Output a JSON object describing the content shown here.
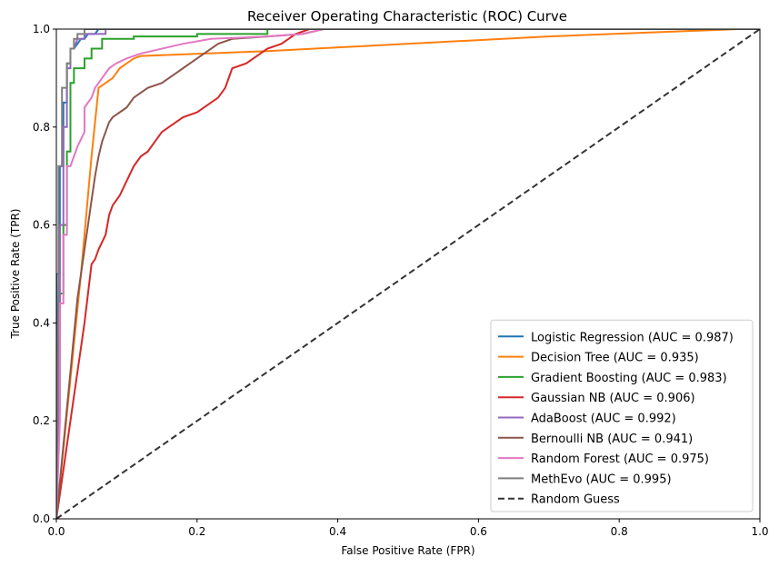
{
  "chart_data": {
    "type": "line",
    "title": "Receiver Operating Characteristic (ROC) Curve",
    "xlabel": "False Positive Rate (FPR)",
    "ylabel": "True Positive Rate (TPR)",
    "xlim": [
      0,
      1
    ],
    "ylim": [
      0,
      1
    ],
    "xticks": [
      "0.0",
      "0.2",
      "0.4",
      "0.6",
      "0.8",
      "1.0"
    ],
    "yticks": [
      "0.0",
      "0.2",
      "0.4",
      "0.6",
      "0.8",
      "1.0"
    ],
    "grid": false,
    "legend_position": "bottom-right",
    "series": [
      {
        "name": "Logistic Regression (AUC = 0.987)",
        "color": "#1f77b4",
        "style": "solid",
        "points": [
          [
            0,
            0
          ],
          [
            0,
            0.5
          ],
          [
            0.005,
            0.5
          ],
          [
            0.005,
            0.72
          ],
          [
            0.01,
            0.72
          ],
          [
            0.01,
            0.85
          ],
          [
            0.015,
            0.85
          ],
          [
            0.015,
            0.93
          ],
          [
            0.02,
            0.93
          ],
          [
            0.02,
            0.96
          ],
          [
            0.025,
            0.96
          ],
          [
            0.03,
            0.97
          ],
          [
            0.035,
            0.98
          ],
          [
            0.04,
            0.98
          ],
          [
            0.045,
            0.99
          ],
          [
            0.055,
            0.99
          ],
          [
            0.06,
            1.0
          ],
          [
            1,
            1
          ]
        ]
      },
      {
        "name": "Decision Tree (AUC = 0.935)",
        "color": "#ff7f0e",
        "style": "solid",
        "points": [
          [
            0,
            0
          ],
          [
            0.035,
            0.5
          ],
          [
            0.05,
            0.74
          ],
          [
            0.06,
            0.88
          ],
          [
            0.08,
            0.9
          ],
          [
            0.09,
            0.92
          ],
          [
            0.11,
            0.94
          ],
          [
            0.12,
            0.945
          ],
          [
            0.3,
            0.955
          ],
          [
            0.5,
            0.97
          ],
          [
            0.7,
            0.985
          ],
          [
            0.97,
            1.0
          ],
          [
            1,
            1
          ]
        ]
      },
      {
        "name": "Gradient Boosting (AUC = 0.983)",
        "color": "#2ca02c",
        "style": "solid",
        "points": [
          [
            0,
            0
          ],
          [
            0.005,
            0.23
          ],
          [
            0.005,
            0.46
          ],
          [
            0.01,
            0.46
          ],
          [
            0.01,
            0.6
          ],
          [
            0.015,
            0.6
          ],
          [
            0.015,
            0.75
          ],
          [
            0.02,
            0.75
          ],
          [
            0.02,
            0.89
          ],
          [
            0.025,
            0.89
          ],
          [
            0.025,
            0.92
          ],
          [
            0.04,
            0.92
          ],
          [
            0.04,
            0.94
          ],
          [
            0.05,
            0.94
          ],
          [
            0.05,
            0.96
          ],
          [
            0.065,
            0.96
          ],
          [
            0.065,
            0.98
          ],
          [
            0.11,
            0.98
          ],
          [
            0.11,
            0.985
          ],
          [
            0.2,
            0.985
          ],
          [
            0.2,
            0.99
          ],
          [
            0.3,
            0.99
          ],
          [
            0.3,
            1.0
          ],
          [
            1,
            1
          ]
        ]
      },
      {
        "name": "Gaussian NB (AUC = 0.906)",
        "color": "#d62728",
        "style": "solid",
        "points": [
          [
            0,
            0
          ],
          [
            0.04,
            0.4
          ],
          [
            0.05,
            0.52
          ],
          [
            0.055,
            0.53
          ],
          [
            0.06,
            0.55
          ],
          [
            0.07,
            0.58
          ],
          [
            0.075,
            0.62
          ],
          [
            0.08,
            0.64
          ],
          [
            0.09,
            0.66
          ],
          [
            0.1,
            0.69
          ],
          [
            0.11,
            0.72
          ],
          [
            0.12,
            0.74
          ],
          [
            0.13,
            0.75
          ],
          [
            0.14,
            0.77
          ],
          [
            0.15,
            0.79
          ],
          [
            0.16,
            0.8
          ],
          [
            0.17,
            0.81
          ],
          [
            0.18,
            0.82
          ],
          [
            0.2,
            0.83
          ],
          [
            0.21,
            0.84
          ],
          [
            0.22,
            0.85
          ],
          [
            0.23,
            0.86
          ],
          [
            0.24,
            0.88
          ],
          [
            0.245,
            0.9
          ],
          [
            0.25,
            0.92
          ],
          [
            0.27,
            0.93
          ],
          [
            0.28,
            0.94
          ],
          [
            0.29,
            0.95
          ],
          [
            0.3,
            0.96
          ],
          [
            0.32,
            0.97
          ],
          [
            0.33,
            0.98
          ],
          [
            0.34,
            0.99
          ],
          [
            0.36,
            1.0
          ],
          [
            1,
            1
          ]
        ]
      },
      {
        "name": "AdaBoost (AUC = 0.992)",
        "color": "#9467bd",
        "style": "solid",
        "points": [
          [
            0,
            0
          ],
          [
            0.005,
            0.4
          ],
          [
            0.005,
            0.6
          ],
          [
            0.01,
            0.6
          ],
          [
            0.01,
            0.8
          ],
          [
            0.015,
            0.8
          ],
          [
            0.015,
            0.92
          ],
          [
            0.02,
            0.92
          ],
          [
            0.02,
            0.96
          ],
          [
            0.025,
            0.96
          ],
          [
            0.03,
            0.98
          ],
          [
            0.04,
            0.98
          ],
          [
            0.04,
            0.99
          ],
          [
            0.07,
            0.99
          ],
          [
            0.07,
            1.0
          ],
          [
            1,
            1
          ]
        ]
      },
      {
        "name": "Bernoulli NB (AUC = 0.941)",
        "color": "#8c564b",
        "style": "solid",
        "points": [
          [
            0,
            0
          ],
          [
            0.02,
            0.3
          ],
          [
            0.03,
            0.45
          ],
          [
            0.04,
            0.55
          ],
          [
            0.045,
            0.6
          ],
          [
            0.05,
            0.65
          ],
          [
            0.055,
            0.7
          ],
          [
            0.06,
            0.74
          ],
          [
            0.065,
            0.77
          ],
          [
            0.07,
            0.79
          ],
          [
            0.075,
            0.81
          ],
          [
            0.08,
            0.82
          ],
          [
            0.09,
            0.83
          ],
          [
            0.1,
            0.84
          ],
          [
            0.11,
            0.86
          ],
          [
            0.12,
            0.87
          ],
          [
            0.13,
            0.88
          ],
          [
            0.15,
            0.89
          ],
          [
            0.16,
            0.9
          ],
          [
            0.17,
            0.91
          ],
          [
            0.18,
            0.92
          ],
          [
            0.19,
            0.93
          ],
          [
            0.2,
            0.94
          ],
          [
            0.21,
            0.95
          ],
          [
            0.22,
            0.96
          ],
          [
            0.23,
            0.97
          ],
          [
            0.24,
            0.975
          ],
          [
            0.25,
            0.98
          ],
          [
            0.3,
            0.985
          ],
          [
            0.35,
            0.99
          ],
          [
            0.38,
            1.0
          ],
          [
            1,
            1
          ]
        ]
      },
      {
        "name": "Random Forest (AUC = 0.975)",
        "color": "#e377c2",
        "style": "solid",
        "points": [
          [
            0,
            0
          ],
          [
            0.005,
            0.2
          ],
          [
            0.005,
            0.44
          ],
          [
            0.01,
            0.44
          ],
          [
            0.01,
            0.58
          ],
          [
            0.015,
            0.58
          ],
          [
            0.015,
            0.72
          ],
          [
            0.02,
            0.72
          ],
          [
            0.025,
            0.74
          ],
          [
            0.03,
            0.76
          ],
          [
            0.04,
            0.79
          ],
          [
            0.04,
            0.84
          ],
          [
            0.05,
            0.86
          ],
          [
            0.055,
            0.88
          ],
          [
            0.065,
            0.9
          ],
          [
            0.07,
            0.91
          ],
          [
            0.075,
            0.92
          ],
          [
            0.085,
            0.93
          ],
          [
            0.1,
            0.94
          ],
          [
            0.12,
            0.95
          ],
          [
            0.15,
            0.96
          ],
          [
            0.18,
            0.97
          ],
          [
            0.22,
            0.98
          ],
          [
            0.3,
            0.985
          ],
          [
            0.35,
            0.99
          ],
          [
            0.38,
            1.0
          ],
          [
            1,
            1
          ]
        ]
      },
      {
        "name": "MethEvo (AUC = 0.995)",
        "color": "#7f7f7f",
        "style": "solid",
        "points": [
          [
            0,
            0
          ],
          [
            0.003,
            0.5
          ],
          [
            0.003,
            0.72
          ],
          [
            0.008,
            0.72
          ],
          [
            0.008,
            0.88
          ],
          [
            0.015,
            0.88
          ],
          [
            0.015,
            0.93
          ],
          [
            0.02,
            0.93
          ],
          [
            0.02,
            0.96
          ],
          [
            0.025,
            0.96
          ],
          [
            0.025,
            0.98
          ],
          [
            0.03,
            0.98
          ],
          [
            0.03,
            0.99
          ],
          [
            0.04,
            0.99
          ],
          [
            0.04,
            1.0
          ],
          [
            1,
            1
          ]
        ]
      },
      {
        "name": "Random Guess",
        "color": "#333333",
        "style": "dashed",
        "points": [
          [
            0,
            0
          ],
          [
            1,
            1
          ]
        ]
      }
    ]
  }
}
